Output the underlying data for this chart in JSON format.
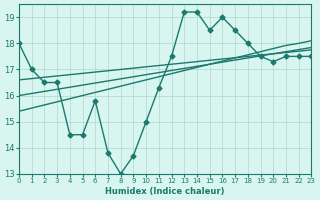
{
  "x": [
    0,
    1,
    2,
    3,
    4,
    5,
    6,
    7,
    8,
    9,
    10,
    11,
    12,
    13,
    14,
    15,
    16,
    17,
    18,
    19,
    20,
    21,
    22,
    23
  ],
  "y_main": [
    18,
    17,
    16.5,
    16.5,
    14.5,
    14.5,
    15.8,
    13.8,
    13,
    13.7,
    15,
    16.3,
    17.5,
    19.2,
    19.2,
    18.5,
    19,
    18.5,
    18,
    17.5,
    17.3,
    17.5,
    17.5,
    17.5
  ],
  "y_trend1": [
    16.6,
    16.65,
    16.7,
    16.75,
    16.8,
    16.85,
    16.9,
    16.95,
    17.0,
    17.05,
    17.1,
    17.15,
    17.2,
    17.25,
    17.3,
    17.35,
    17.4,
    17.45,
    17.5,
    17.55,
    17.6,
    17.65,
    17.7,
    17.75
  ],
  "y_trend2": [
    16.0,
    16.08,
    16.16,
    16.24,
    16.32,
    16.4,
    16.48,
    16.56,
    16.64,
    16.72,
    16.8,
    16.88,
    16.96,
    17.04,
    17.12,
    17.2,
    17.28,
    17.36,
    17.44,
    17.52,
    17.6,
    17.68,
    17.76,
    17.84
  ],
  "y_trend3": [
    15.4,
    15.52,
    15.64,
    15.76,
    15.88,
    16.0,
    16.12,
    16.24,
    16.36,
    16.48,
    16.6,
    16.72,
    16.84,
    16.96,
    17.08,
    17.2,
    17.32,
    17.44,
    17.56,
    17.68,
    17.8,
    17.92,
    18.0,
    18.1
  ],
  "line_color": "#1a7a6e",
  "bg_color": "#d8f5f0",
  "grid_color": "#b0d8d0",
  "xlabel": "Humidex (Indice chaleur)",
  "ylim": [
    13,
    19.5
  ],
  "xlim": [
    0,
    23
  ],
  "yticks": [
    13,
    14,
    15,
    16,
    17,
    18,
    19
  ],
  "xticks": [
    0,
    1,
    2,
    3,
    4,
    5,
    6,
    7,
    8,
    9,
    10,
    11,
    12,
    13,
    14,
    15,
    16,
    17,
    18,
    19,
    20,
    21,
    22,
    23
  ],
  "marker": "D",
  "markersize": 2.5,
  "linewidth": 1.0
}
